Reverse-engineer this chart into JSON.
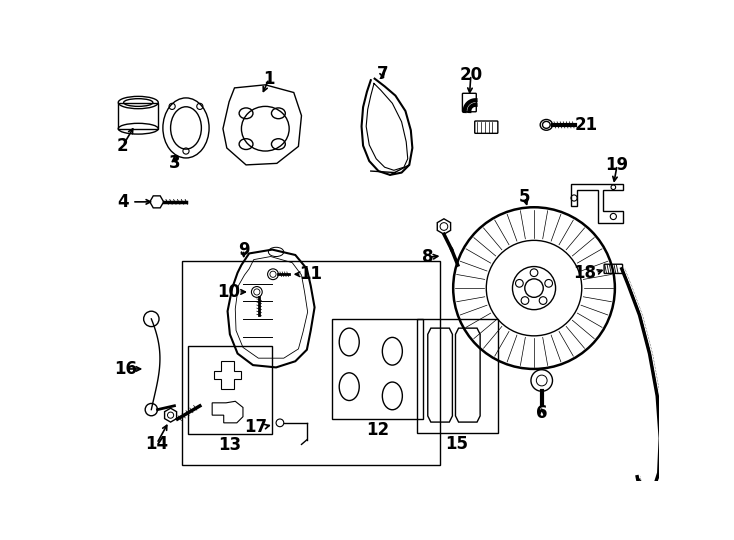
{
  "background_color": "#ffffff",
  "line_color": "#000000",
  "figsize": [
    7.34,
    5.4
  ],
  "dpi": 100
}
